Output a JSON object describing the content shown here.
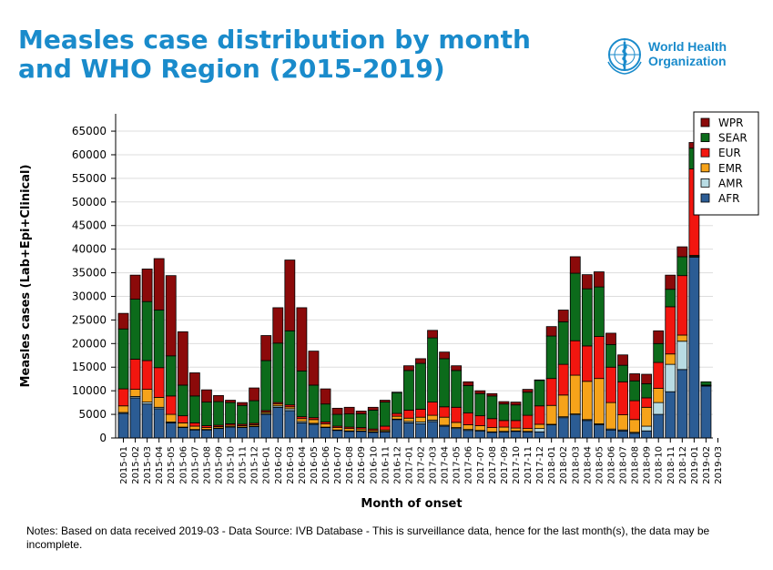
{
  "header": {
    "title": "Measles case distribution by month and WHO Region (2015-2019)",
    "logo_text_line1": "World Health",
    "logo_text_line2": "Organization"
  },
  "notes": "Notes: Based on data received 2019-03 - Data Source: IVB Database - This is surveillance data, hence for the last month(s), the data may be incomplete.",
  "colors": {
    "AFR": "#2b5c94",
    "AMR": "#b8dbe3",
    "EMR": "#f6a31a",
    "EUR": "#f2160f",
    "SEAR": "#0c6b1b",
    "WPR": "#8b0a0a",
    "title": "#1a8bcb"
  },
  "chart_data": {
    "type": "bar",
    "stacked": true,
    "xlabel": "Month of onset",
    "ylabel": "Measles cases (Lab+Epi+Clinical)",
    "ylim": [
      0,
      68000
    ],
    "yticks": [
      0,
      5000,
      10000,
      15000,
      20000,
      25000,
      30000,
      35000,
      40000,
      45000,
      50000,
      55000,
      60000,
      65000
    ],
    "grid": true,
    "legend_position": "top-right",
    "legend_order": [
      "WPR",
      "SEAR",
      "EUR",
      "EMR",
      "AMR",
      "AFR"
    ],
    "categories": [
      "2015-01",
      "2015-02",
      "2015-03",
      "2015-04",
      "2015-05",
      "2015-06",
      "2015-07",
      "2015-08",
      "2015-09",
      "2015-10",
      "2015-11",
      "2015-12",
      "2016-01",
      "2016-02",
      "2016-03",
      "2016-04",
      "2016-05",
      "2016-06",
      "2016-07",
      "2016-08",
      "2016-09",
      "2016-10",
      "2016-11",
      "2016-12",
      "2017-01",
      "2017-02",
      "2017-03",
      "2017-04",
      "2017-05",
      "2017-06",
      "2017-07",
      "2017-08",
      "2017-09",
      "2017-10",
      "2017-11",
      "2017-12",
      "2018-01",
      "2018-02",
      "2018-03",
      "2018-04",
      "2018-05",
      "2018-06",
      "2018-07",
      "2018-08",
      "2018-09",
      "2018-10",
      "2018-11",
      "2018-12",
      "2019-01",
      "2019-02",
      "2019-03"
    ],
    "series": [
      {
        "name": "AFR",
        "values": [
          5200,
          8500,
          7200,
          6200,
          3200,
          2200,
          1700,
          1700,
          2000,
          2300,
          2200,
          2400,
          5000,
          6500,
          5800,
          3200,
          2900,
          2200,
          1600,
          1400,
          1400,
          1200,
          1300,
          3900,
          3200,
          3000,
          3500,
          2500,
          2000,
          1600,
          1500,
          1200,
          1300,
          1400,
          1300,
          1300,
          2800,
          4300,
          4900,
          3700,
          2800,
          1700,
          1500,
          1000,
          1500,
          5000,
          9800,
          14500,
          38300,
          11000,
          0
        ]
      },
      {
        "name": "AMR",
        "values": [
          200,
          300,
          400,
          300,
          200,
          100,
          100,
          100,
          100,
          100,
          100,
          100,
          200,
          300,
          400,
          300,
          200,
          100,
          100,
          100,
          100,
          100,
          100,
          100,
          300,
          400,
          300,
          200,
          200,
          200,
          100,
          100,
          100,
          100,
          100,
          700,
          100,
          200,
          200,
          200,
          200,
          200,
          200,
          200,
          1000,
          2500,
          5800,
          6000,
          200,
          100,
          0
        ]
      },
      {
        "name": "EMR",
        "values": [
          1400,
          1500,
          2700,
          2100,
          1600,
          900,
          700,
          400,
          300,
          300,
          300,
          300,
          300,
          400,
          400,
          600,
          800,
          700,
          500,
          500,
          400,
          300,
          300,
          600,
          700,
          1000,
          1000,
          1700,
          1100,
          1000,
          1000,
          900,
          900,
          600,
          600,
          900,
          4000,
          4600,
          8200,
          8100,
          9600,
          5600,
          3200,
          2700,
          4000,
          3000,
          2200,
          1300,
          200,
          100,
          0
        ]
      },
      {
        "name": "EUR",
        "values": [
          3600,
          6400,
          6100,
          6300,
          3900,
          1500,
          700,
          400,
          300,
          300,
          300,
          300,
          300,
          300,
          400,
          400,
          400,
          400,
          300,
          300,
          300,
          300,
          800,
          600,
          1700,
          1700,
          2800,
          2200,
          3200,
          2500,
          2100,
          1900,
          1400,
          1600,
          2800,
          3900,
          5700,
          6500,
          7300,
          7500,
          8900,
          7500,
          7000,
          4000,
          2000,
          5500,
          10000,
          12600,
          18300,
          0,
          0
        ]
      },
      {
        "name": "SEAR",
        "values": [
          12700,
          12700,
          12500,
          12200,
          8500,
          6500,
          5700,
          5000,
          5000,
          4500,
          4000,
          4800,
          10600,
          12600,
          15700,
          9700,
          6900,
          3800,
          2500,
          2800,
          2900,
          4000,
          5100,
          4400,
          8400,
          9700,
          13600,
          10200,
          7800,
          5800,
          4700,
          4800,
          3500,
          3300,
          4900,
          5400,
          9000,
          9000,
          14300,
          12100,
          10500,
          4800,
          3500,
          4200,
          3000,
          4000,
          3700,
          4000,
          4400,
          700,
          0
        ]
      },
      {
        "name": "WPR",
        "values": [
          3300,
          5100,
          6900,
          10900,
          17000,
          11300,
          4900,
          2600,
          1300,
          500,
          600,
          2700,
          5300,
          7500,
          15000,
          13400,
          7200,
          3200,
          1300,
          1400,
          600,
          600,
          400,
          100,
          1000,
          1000,
          1600,
          1400,
          1000,
          800,
          600,
          500,
          500,
          600,
          600,
          100,
          2000,
          2500,
          3500,
          3000,
          3200,
          2400,
          2200,
          1500,
          2000,
          2700,
          3000,
          2100,
          1200,
          0,
          0
        ]
      }
    ]
  }
}
